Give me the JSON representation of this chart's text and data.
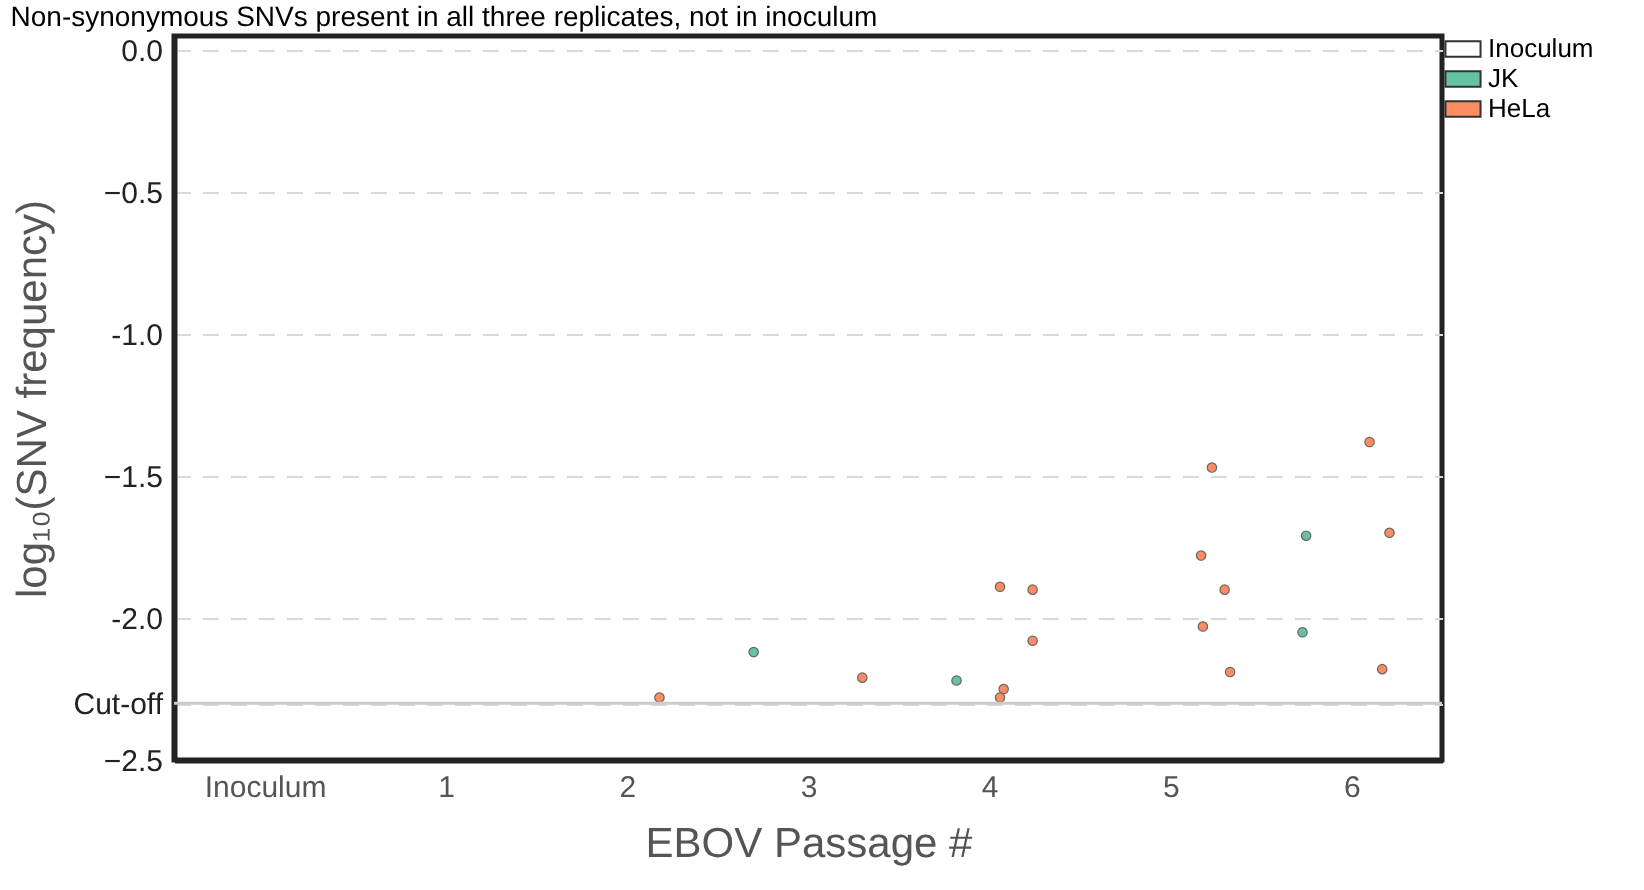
{
  "chart_data": {
    "type": "scatter",
    "title": "Non-synonymous SNVs present in all three replicates, not in inoculum",
    "xlabel": "EBOV Passage #",
    "ylabel": "log₁₀(SNV frequency)",
    "xlim": [
      -0.5,
      6.5
    ],
    "xticks": [
      {
        "value": 0,
        "label": "Inoculum"
      },
      1,
      2,
      3,
      4,
      5,
      6
    ],
    "ylim": [
      -2.5,
      0.05
    ],
    "yticks": [
      {
        "value": 0,
        "label": "0.0"
      },
      -0.5,
      {
        "value": -1,
        "label": "-1.0"
      },
      -1.5,
      {
        "value": -2,
        "label": "-2.0"
      },
      {
        "value": -2.3,
        "label": "Cut-off"
      },
      -2.5
    ],
    "grid": "y",
    "legend": "top right",
    "marker": "circle",
    "ref_lines": [
      {
        "axis": "y",
        "value": -2.3,
        "color": "#cccccc",
        "line_style": "solid"
      }
    ],
    "series": [
      {
        "name": "Inoculum",
        "color": "#ffffff"
      },
      {
        "name": "JK",
        "color": "#66c2a5",
        "x": [
          2.7,
          3.82,
          5.75,
          5.73
        ],
        "values": [
          -2.12,
          -2.22,
          -1.71,
          -2.05
        ]
      },
      {
        "name": "HeLa",
        "color": "#fc8d62",
        "x": [
          2.18,
          3.3,
          4.08,
          4.06,
          4.06,
          4.24,
          4.24,
          5.23,
          5.17,
          5.3,
          5.18,
          5.33,
          6.1,
          6.21,
          6.17
        ],
        "values": [
          -2.28,
          -2.21,
          -2.25,
          -2.28,
          -1.89,
          -1.9,
          -2.08,
          -1.47,
          -1.78,
          -1.9,
          -2.03,
          -2.19,
          -1.38,
          -1.7,
          -2.18
        ]
      }
    ]
  }
}
